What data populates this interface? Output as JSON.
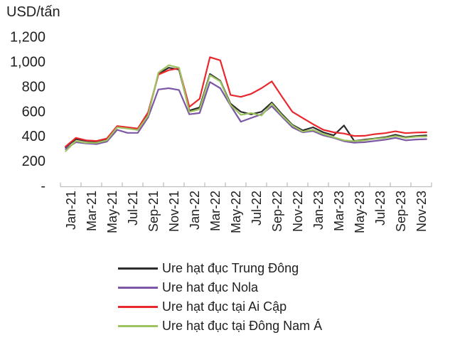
{
  "title": "USD/tấn",
  "chart_data": {
    "type": "line",
    "title": "USD/tấn",
    "x": [
      "Jan-21",
      "Feb-21",
      "Mar-21",
      "Apr-21",
      "May-21",
      "Jun-21",
      "Jul-21",
      "Aug-21",
      "Sep-21",
      "Oct-21",
      "Nov-21",
      "Dec-21",
      "Jan-22",
      "Feb-22",
      "Mar-22",
      "Apr-22",
      "May-22",
      "Jun-22",
      "Jul-22",
      "Aug-22",
      "Sep-22",
      "Oct-22",
      "Nov-22",
      "Dec-22",
      "Jan-23",
      "Feb-23",
      "Mar-23",
      "Apr-23",
      "May-23",
      "Jun-23",
      "Jul-23",
      "Aug-23",
      "Sep-23",
      "Oct-23",
      "Nov-23",
      "Dec-23"
    ],
    "x_tick_labels": [
      "Jan-21",
      "Mar-21",
      "May-21",
      "Jul-21",
      "Sep-21",
      "Nov-21",
      "Jan-22",
      "Mar-22",
      "May-22",
      "Jul-22",
      "Sep-22",
      "Nov-22",
      "Jan-23",
      "Mar-23",
      "May-23",
      "Jul-23",
      "Sep-23",
      "Nov-23"
    ],
    "y_axis": {
      "tick_labels": [
        "1,200",
        "1,000",
        "800",
        "600",
        "400",
        "200",
        "-"
      ],
      "tick_values": [
        1200,
        1000,
        800,
        600,
        400,
        200,
        0
      ],
      "min": 0,
      "max": 1200
    },
    "series": [
      {
        "name": "Ure hạt đục Trung Đông",
        "color": "#2d2d2d",
        "values": [
          310,
          375,
          360,
          355,
          375,
          475,
          465,
          455,
          575,
          900,
          950,
          935,
          605,
          630,
          900,
          845,
          660,
          595,
          575,
          595,
          670,
          575,
          490,
          445,
          470,
          430,
          405,
          485,
          360,
          370,
          380,
          390,
          410,
          390,
          400,
          405
        ]
      },
      {
        "name": "Ure hat đục Nola",
        "color": "#7b57a5",
        "values": [
          295,
          350,
          340,
          335,
          355,
          450,
          425,
          425,
          550,
          775,
          785,
          770,
          575,
          585,
          835,
          785,
          645,
          515,
          545,
          575,
          640,
          555,
          470,
          430,
          440,
          405,
          385,
          358,
          346,
          350,
          360,
          370,
          385,
          365,
          372,
          375
        ]
      },
      {
        "name": "Ure hạt đục tại Ai Cập",
        "color": "#e8282d",
        "values": [
          315,
          385,
          365,
          360,
          380,
          480,
          470,
          460,
          590,
          895,
          930,
          945,
          635,
          700,
          1035,
          1010,
          730,
          715,
          740,
          785,
          840,
          715,
          595,
          545,
          495,
          450,
          430,
          420,
          400,
          402,
          415,
          423,
          438,
          423,
          428,
          430
        ]
      },
      {
        "name": "Ure hạt đục tại Đông Nam Á",
        "color": "#9dc360",
        "values": [
          278,
          360,
          345,
          345,
          365,
          470,
          460,
          448,
          565,
          910,
          970,
          950,
          595,
          615,
          890,
          840,
          650,
          570,
          585,
          565,
          660,
          565,
          485,
          435,
          450,
          415,
          390,
          365,
          358,
          365,
          377,
          385,
          400,
          385,
          394,
          396
        ]
      }
    ],
    "legend_position": "bottom",
    "grid": false,
    "axis_color": "#bfbfbf",
    "text_color": "#1f1f1f"
  }
}
